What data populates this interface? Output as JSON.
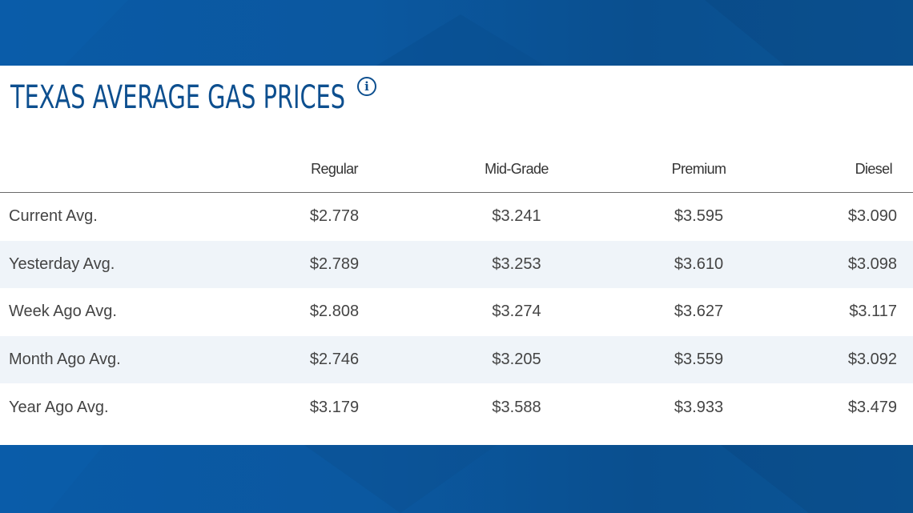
{
  "title": "TEXAS AVERAGE GAS PRICES",
  "info_icon": "info-icon",
  "colors": {
    "brand_blue": "#0d4f8f",
    "alt_row": "#eff4f9"
  },
  "table": {
    "columns": [
      "",
      "Regular",
      "Mid-Grade",
      "Premium",
      "Diesel"
    ],
    "rows": [
      {
        "label": "Current Avg.",
        "regular": "$2.778",
        "mid_grade": "$3.241",
        "premium": "$3.595",
        "diesel": "$3.090"
      },
      {
        "label": "Yesterday Avg.",
        "regular": "$2.789",
        "mid_grade": "$3.253",
        "premium": "$3.610",
        "diesel": "$3.098"
      },
      {
        "label": "Week Ago Avg.",
        "regular": "$2.808",
        "mid_grade": "$3.274",
        "premium": "$3.627",
        "diesel": "$3.117"
      },
      {
        "label": "Month Ago Avg.",
        "regular": "$2.746",
        "mid_grade": "$3.205",
        "premium": "$3.559",
        "diesel": "$3.092"
      },
      {
        "label": "Year Ago Avg.",
        "regular": "$3.179",
        "mid_grade": "$3.588",
        "premium": "$3.933",
        "diesel": "$3.479"
      }
    ]
  }
}
